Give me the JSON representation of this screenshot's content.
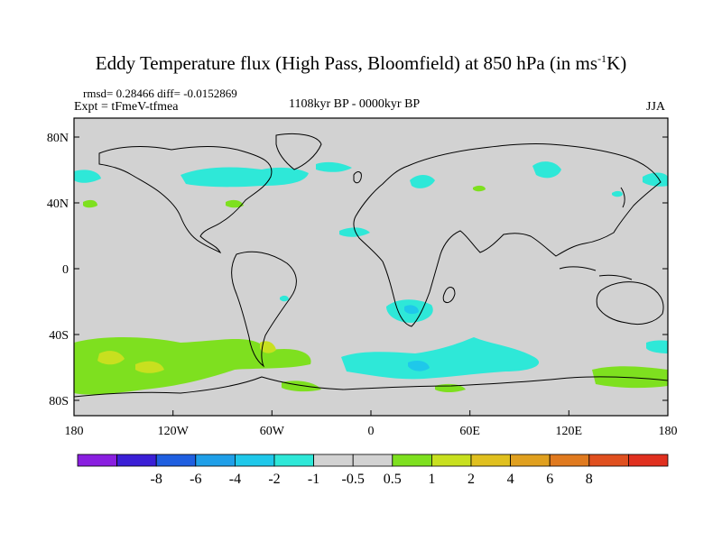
{
  "title": {
    "main": "Eddy Temperature flux (High Pass, Bloomfield) at 850 hPa (in ms",
    "sup": "-1",
    "tail": "K)"
  },
  "stats": "rmsd= 0.28466 diff= -0.0152869",
  "experiment": "Expt = tFmeV-tfmea",
  "period": "1108kyr BP - 0000kyr BP",
  "season": "JJA",
  "lat_labels": [
    "80N",
    "40N",
    "0",
    "40S",
    "80S"
  ],
  "lon_labels": [
    "180",
    "120W",
    "60W",
    "0",
    "60E",
    "120E",
    "180"
  ],
  "colorbar": {
    "colors": [
      "#8a1fe0",
      "#3b1fd6",
      "#1f5fe0",
      "#1f9fe8",
      "#1fc8ea",
      "#2ee8d8",
      "#d2d2d2",
      "#d2d2d2",
      "#7ee01f",
      "#c8e01f",
      "#e0c01f",
      "#e0a01f",
      "#e07a1f",
      "#e0501f",
      "#e0301f"
    ],
    "labels": [
      "-8",
      "-6",
      "-4",
      "-2",
      "-1",
      "-0.5",
      "0.5",
      "1",
      "2",
      "4",
      "6",
      "8"
    ]
  },
  "colors": {
    "background": "#d2d2d2",
    "cyan": "#2ee8d8",
    "blue": "#1fc8ea",
    "green": "#7ee01f",
    "yellow": "#c8e01f"
  }
}
